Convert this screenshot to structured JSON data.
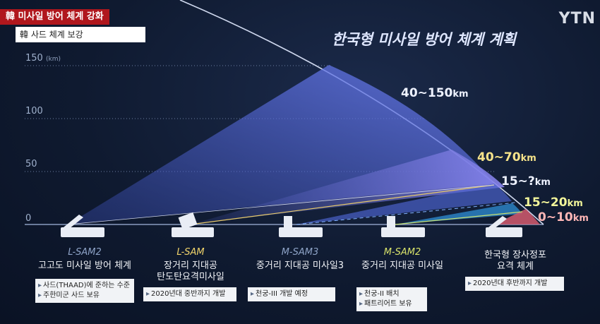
{
  "headline": "韓 미사일 방어 체계 강화",
  "subtitle_strip": "韓 사드 체계 보강",
  "brand": "YTN",
  "title": "한국형 미사일 방어 체계 계획",
  "y_axis": {
    "ticks": [
      "150",
      "100",
      "50",
      "0"
    ],
    "unit": "(km)"
  },
  "ranges": [
    {
      "label": "40~150",
      "unit": "km",
      "color": "#eef2ff"
    },
    {
      "label": "40~70",
      "unit": "km",
      "color": "#f6e38a"
    },
    {
      "label": "15~?",
      "unit": "km",
      "color": "#eef2ff"
    },
    {
      "label": "15~20",
      "unit": "km",
      "color": "#f2f59a"
    },
    {
      "label": "0~10",
      "unit": "km",
      "color": "#ffb6b6"
    }
  ],
  "systems": [
    {
      "code": "L-SAM2",
      "code_color": "#8ea3c7",
      "name": "고고도 미사일 방어 체계",
      "notes": [
        "사드(THAAD)에 준하는 수준",
        "주한미군 사드 보유"
      ]
    },
    {
      "code": "L-SAM",
      "code_color": "#f2d56b",
      "name": "장거리 지대공\n탄도탄요격미사일",
      "notes": [
        "2020년대 중반까지 개발"
      ]
    },
    {
      "code": "M-SAM3",
      "code_color": "#8ea3c7",
      "name": "중거리 지대공 미사일3",
      "notes": [
        "천궁-III 개발 예정"
      ]
    },
    {
      "code": "M-SAM2",
      "code_color": "#d9e36a",
      "name": "중거리 지대공 미사일",
      "notes": [
        "천궁-II 배치",
        "패트리어트 보유"
      ]
    },
    {
      "code": "",
      "code_color": "#8ea3c7",
      "name": "한국형 장사정포\n요격 체계",
      "notes": [
        "2020년대 후반까지 개발"
      ]
    }
  ],
  "colors": {
    "accent_red": "#b0171d",
    "background": "#0f1a30"
  }
}
